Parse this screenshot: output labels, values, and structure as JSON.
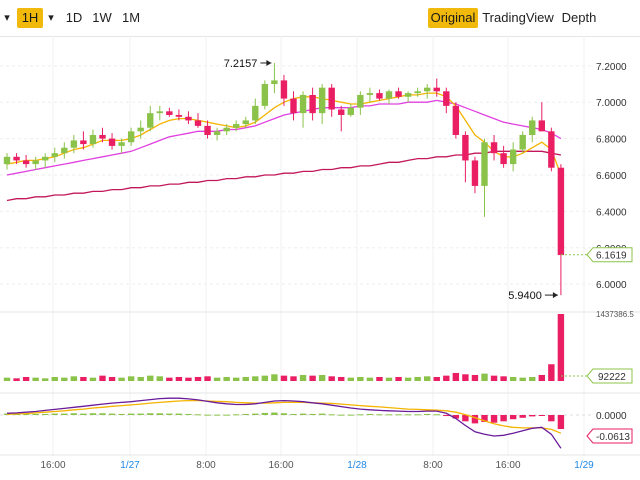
{
  "toolbar": {
    "arrow_left": "▾",
    "interval_active": "1H",
    "arrow_right": "▾",
    "intervals": [
      "1D",
      "1W",
      "1M"
    ],
    "views": [
      "Original",
      "TradingView",
      "Depth"
    ],
    "active_view": "Original"
  },
  "colors": {
    "up": "#8bc34a",
    "down": "#e91e63",
    "accent": "#f0b90b",
    "ma7": "#f4b400",
    "ma25": "#e040e0",
    "ma99": "#c2185b",
    "macd": "#6a1b9a",
    "signal": "#f4b400"
  },
  "chart_data": {
    "type": "candlestick",
    "price_axis": {
      "ticks": [
        "7.2000",
        "7.0000",
        "6.8000",
        "6.6000",
        "6.4000",
        "6.2000",
        "6.0000"
      ],
      "range": [
        5.88,
        7.32
      ]
    },
    "time_axis": {
      "ticks": [
        "16:00",
        "1/27",
        "8:00",
        "16:00",
        "1/28",
        "8:00",
        "16:00",
        "1/29"
      ]
    },
    "annotations": {
      "high_label": "7.2157",
      "low_label": "5.9400"
    },
    "current_price": "6.1619",
    "volume_axis": {
      "top_label": "1437386.5",
      "current_label": "92222"
    },
    "macd_axis": {
      "zero_label": "0.0000",
      "current_label": "-0.0613"
    },
    "candles": [
      {
        "o": 6.66,
        "h": 6.72,
        "l": 6.63,
        "c": 6.7
      },
      {
        "o": 6.7,
        "h": 6.72,
        "l": 6.66,
        "c": 6.68
      },
      {
        "o": 6.68,
        "h": 6.71,
        "l": 6.64,
        "c": 6.66
      },
      {
        "o": 6.66,
        "h": 6.7,
        "l": 6.63,
        "c": 6.68
      },
      {
        "o": 6.68,
        "h": 6.72,
        "l": 6.64,
        "c": 6.7
      },
      {
        "o": 6.7,
        "h": 6.75,
        "l": 6.67,
        "c": 6.72
      },
      {
        "o": 6.72,
        "h": 6.78,
        "l": 6.69,
        "c": 6.75
      },
      {
        "o": 6.75,
        "h": 6.82,
        "l": 6.72,
        "c": 6.79
      },
      {
        "o": 6.79,
        "h": 6.84,
        "l": 6.74,
        "c": 6.77
      },
      {
        "o": 6.77,
        "h": 6.85,
        "l": 6.75,
        "c": 6.82
      },
      {
        "o": 6.82,
        "h": 6.86,
        "l": 6.78,
        "c": 6.8
      },
      {
        "o": 6.8,
        "h": 6.83,
        "l": 6.74,
        "c": 6.76
      },
      {
        "o": 6.76,
        "h": 6.8,
        "l": 6.72,
        "c": 6.78
      },
      {
        "o": 6.78,
        "h": 6.86,
        "l": 6.76,
        "c": 6.84
      },
      {
        "o": 6.84,
        "h": 6.9,
        "l": 6.8,
        "c": 6.86
      },
      {
        "o": 6.86,
        "h": 6.98,
        "l": 6.84,
        "c": 6.94
      },
      {
        "o": 6.94,
        "h": 6.98,
        "l": 6.9,
        "c": 6.95
      },
      {
        "o": 6.95,
        "h": 6.97,
        "l": 6.92,
        "c": 6.93
      },
      {
        "o": 6.93,
        "h": 6.96,
        "l": 6.9,
        "c": 6.92
      },
      {
        "o": 6.92,
        "h": 6.95,
        "l": 6.88,
        "c": 6.9
      },
      {
        "o": 6.9,
        "h": 6.94,
        "l": 6.86,
        "c": 6.87
      },
      {
        "o": 6.87,
        "h": 6.9,
        "l": 6.8,
        "c": 6.82
      },
      {
        "o": 6.82,
        "h": 6.86,
        "l": 6.79,
        "c": 6.84
      },
      {
        "o": 6.84,
        "h": 6.88,
        "l": 6.82,
        "c": 6.86
      },
      {
        "o": 6.86,
        "h": 6.9,
        "l": 6.84,
        "c": 6.88
      },
      {
        "o": 6.88,
        "h": 6.92,
        "l": 6.86,
        "c": 6.9
      },
      {
        "o": 6.9,
        "h": 7.02,
        "l": 6.88,
        "c": 6.98
      },
      {
        "o": 6.98,
        "h": 7.12,
        "l": 6.96,
        "c": 7.1
      },
      {
        "o": 7.1,
        "h": 7.2157,
        "l": 7.05,
        "c": 7.12
      },
      {
        "o": 7.12,
        "h": 7.15,
        "l": 6.98,
        "c": 7.02
      },
      {
        "o": 7.02,
        "h": 7.06,
        "l": 6.9,
        "c": 6.94
      },
      {
        "o": 6.94,
        "h": 7.06,
        "l": 6.86,
        "c": 7.04
      },
      {
        "o": 7.04,
        "h": 7.08,
        "l": 6.9,
        "c": 6.94
      },
      {
        "o": 6.94,
        "h": 7.1,
        "l": 6.88,
        "c": 7.08
      },
      {
        "o": 7.08,
        "h": 7.1,
        "l": 6.92,
        "c": 6.96
      },
      {
        "o": 6.96,
        "h": 6.98,
        "l": 6.84,
        "c": 6.93
      },
      {
        "o": 6.93,
        "h": 6.99,
        "l": 6.92,
        "c": 6.97
      },
      {
        "o": 6.97,
        "h": 7.06,
        "l": 6.93,
        "c": 7.04
      },
      {
        "o": 7.04,
        "h": 7.08,
        "l": 7.0,
        "c": 7.05
      },
      {
        "o": 7.05,
        "h": 7.07,
        "l": 7.01,
        "c": 7.02
      },
      {
        "o": 7.02,
        "h": 7.07,
        "l": 6.99,
        "c": 7.06
      },
      {
        "o": 7.06,
        "h": 7.08,
        "l": 7.02,
        "c": 7.03
      },
      {
        "o": 7.03,
        "h": 7.06,
        "l": 7.0,
        "c": 7.05
      },
      {
        "o": 7.05,
        "h": 7.08,
        "l": 7.03,
        "c": 7.06
      },
      {
        "o": 7.06,
        "h": 7.1,
        "l": 7.02,
        "c": 7.08
      },
      {
        "o": 7.08,
        "h": 7.13,
        "l": 7.03,
        "c": 7.06
      },
      {
        "o": 7.06,
        "h": 7.08,
        "l": 6.94,
        "c": 6.98
      },
      {
        "o": 6.98,
        "h": 7.0,
        "l": 6.8,
        "c": 6.82
      },
      {
        "o": 6.82,
        "h": 6.84,
        "l": 6.56,
        "c": 6.68
      },
      {
        "o": 6.68,
        "h": 6.7,
        "l": 6.5,
        "c": 6.54
      },
      {
        "o": 6.54,
        "h": 6.8,
        "l": 6.37,
        "c": 6.78
      },
      {
        "o": 6.78,
        "h": 6.82,
        "l": 6.68,
        "c": 6.72
      },
      {
        "o": 6.72,
        "h": 6.76,
        "l": 6.64,
        "c": 6.66
      },
      {
        "o": 6.66,
        "h": 6.78,
        "l": 6.62,
        "c": 6.74
      },
      {
        "o": 6.74,
        "h": 6.84,
        "l": 6.72,
        "c": 6.82
      },
      {
        "o": 6.82,
        "h": 6.92,
        "l": 6.78,
        "c": 6.9
      },
      {
        "o": 6.9,
        "h": 7.0,
        "l": 6.84,
        "c": 6.84
      },
      {
        "o": 6.84,
        "h": 6.86,
        "l": 6.62,
        "c": 6.64
      },
      {
        "o": 6.64,
        "h": 6.66,
        "l": 5.94,
        "c": 6.16
      }
    ],
    "ma7": [
      6.66,
      6.67,
      6.68,
      6.68,
      6.69,
      6.7,
      6.72,
      6.74,
      6.75,
      6.77,
      6.79,
      6.79,
      6.79,
      6.8,
      6.82,
      6.85,
      6.88,
      6.9,
      6.91,
      6.91,
      6.9,
      6.89,
      6.88,
      6.87,
      6.86,
      6.87,
      6.89,
      6.93,
      6.97,
      7.0,
      7.02,
      7.03,
      7.03,
      7.02,
      7.01,
      7.0,
      6.99,
      6.99,
      7.0,
      7.01,
      7.02,
      7.03,
      7.04,
      7.04,
      7.05,
      7.05,
      7.03,
      6.98,
      6.9,
      6.82,
      6.78,
      6.73,
      6.7,
      6.7,
      6.72,
      6.75,
      6.78,
      6.74,
      6.6
    ],
    "ma25": [
      6.6,
      6.61,
      6.62,
      6.63,
      6.64,
      6.65,
      6.66,
      6.67,
      6.68,
      6.69,
      6.7,
      6.71,
      6.72,
      6.73,
      6.75,
      6.77,
      6.79,
      6.81,
      6.82,
      6.83,
      6.84,
      6.84,
      6.84,
      6.85,
      6.85,
      6.86,
      6.87,
      6.89,
      6.91,
      6.93,
      6.94,
      6.95,
      6.96,
      6.97,
      6.97,
      6.97,
      6.97,
      6.98,
      6.98,
      6.99,
      6.99,
      6.99,
      7.0,
      7.0,
      7.0,
      7.01,
      7.0,
      6.99,
      6.97,
      6.95,
      6.93,
      6.91,
      6.89,
      6.88,
      6.87,
      6.86,
      6.85,
      6.83,
      6.8
    ],
    "ma99": [
      6.46,
      6.47,
      6.47,
      6.48,
      6.48,
      6.49,
      6.49,
      6.5,
      6.5,
      6.51,
      6.51,
      6.52,
      6.52,
      6.53,
      6.53,
      6.54,
      6.54,
      6.55,
      6.55,
      6.56,
      6.56,
      6.57,
      6.57,
      6.58,
      6.58,
      6.59,
      6.59,
      6.6,
      6.6,
      6.61,
      6.61,
      6.62,
      6.62,
      6.63,
      6.63,
      6.64,
      6.64,
      6.65,
      6.65,
      6.66,
      6.67,
      6.67,
      6.68,
      6.69,
      6.69,
      6.7,
      6.7,
      6.71,
      6.71,
      6.72,
      6.72,
      6.73,
      6.73,
      6.73,
      6.73,
      6.73,
      6.73,
      6.72,
      6.71
    ],
    "volume": [
      0.05,
      0.04,
      0.06,
      0.05,
      0.04,
      0.06,
      0.05,
      0.07,
      0.06,
      0.05,
      0.08,
      0.06,
      0.05,
      0.07,
      0.06,
      0.08,
      0.07,
      0.05,
      0.06,
      0.05,
      0.06,
      0.07,
      0.05,
      0.06,
      0.05,
      0.06,
      0.07,
      0.08,
      0.1,
      0.08,
      0.07,
      0.09,
      0.08,
      0.09,
      0.07,
      0.06,
      0.05,
      0.06,
      0.05,
      0.06,
      0.05,
      0.06,
      0.05,
      0.06,
      0.07,
      0.06,
      0.08,
      0.12,
      0.1,
      0.09,
      0.11,
      0.08,
      0.07,
      0.06,
      0.05,
      0.06,
      0.09,
      0.25,
      1.0
    ],
    "macd_hist": [
      0.004,
      0.003,
      0.004,
      0.003,
      0.003,
      0.004,
      0.004,
      0.005,
      0.004,
      0.005,
      0.005,
      0.004,
      0.003,
      0.004,
      0.004,
      0.005,
      0.005,
      0.004,
      0.004,
      0.003,
      0.002,
      0.001,
      0.001,
      0.001,
      0.002,
      0.003,
      0.004,
      0.006,
      0.007,
      0.005,
      0.003,
      0.004,
      0.003,
      0.004,
      0.002,
      0.001,
      0.001,
      0.002,
      0.003,
      0.002,
      0.002,
      0.002,
      0.002,
      0.002,
      0.003,
      0.002,
      -0.003,
      -0.01,
      -0.018,
      -0.024,
      -0.02,
      -0.022,
      -0.018,
      -0.012,
      -0.008,
      -0.004,
      -0.002,
      -0.018,
      -0.04
    ],
    "macd_line": [
      0.005,
      0.006,
      0.008,
      0.01,
      0.013,
      0.016,
      0.019,
      0.022,
      0.025,
      0.028,
      0.031,
      0.034,
      0.036,
      0.038,
      0.041,
      0.044,
      0.047,
      0.048,
      0.048,
      0.046,
      0.043,
      0.039,
      0.035,
      0.032,
      0.03,
      0.03,
      0.032,
      0.036,
      0.04,
      0.041,
      0.04,
      0.038,
      0.035,
      0.032,
      0.028,
      0.024,
      0.02,
      0.017,
      0.015,
      0.013,
      0.012,
      0.011,
      0.01,
      0.01,
      0.011,
      0.011,
      0.005,
      -0.01,
      -0.03,
      -0.048,
      -0.055,
      -0.06,
      -0.058,
      -0.052,
      -0.045,
      -0.038,
      -0.035,
      -0.055,
      -0.095
    ],
    "signal_line": [
      0.002,
      0.003,
      0.004,
      0.006,
      0.008,
      0.01,
      0.012,
      0.015,
      0.017,
      0.02,
      0.022,
      0.025,
      0.027,
      0.029,
      0.031,
      0.034,
      0.036,
      0.038,
      0.04,
      0.041,
      0.041,
      0.04,
      0.039,
      0.038,
      0.036,
      0.035,
      0.034,
      0.034,
      0.035,
      0.036,
      0.036,
      0.036,
      0.035,
      0.034,
      0.033,
      0.031,
      0.029,
      0.027,
      0.025,
      0.023,
      0.021,
      0.019,
      0.017,
      0.016,
      0.015,
      0.014,
      0.012,
      0.008,
      0.001,
      -0.008,
      -0.017,
      -0.025,
      -0.031,
      -0.035,
      -0.037,
      -0.037,
      -0.037,
      -0.041,
      -0.052
    ]
  }
}
